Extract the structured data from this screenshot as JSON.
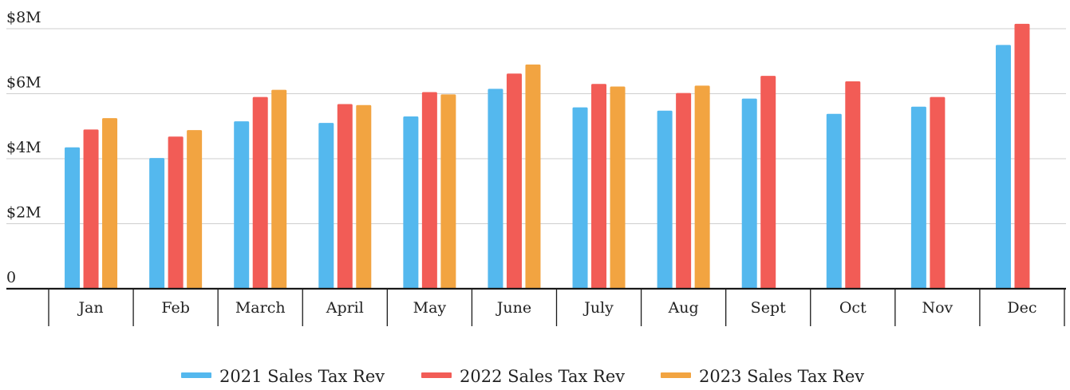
{
  "chart_data": {
    "type": "bar",
    "categories": [
      "Jan",
      "Feb",
      "March",
      "April",
      "May",
      "June",
      "July",
      "Aug",
      "Sept",
      "Oct",
      "Nov",
      "Dec"
    ],
    "series": [
      {
        "name": "2021 Sales Tax Rev",
        "color": "#54b8ee",
        "values": [
          4.35,
          4.02,
          5.15,
          5.1,
          5.3,
          6.15,
          5.58,
          5.48,
          5.85,
          5.38,
          5.6,
          7.5
        ]
      },
      {
        "name": "2022 Sales Tax Rev",
        "color": "#f25c56",
        "values": [
          4.9,
          4.68,
          5.9,
          5.68,
          6.05,
          6.62,
          6.3,
          6.02,
          6.55,
          6.38,
          5.9,
          8.15
        ]
      },
      {
        "name": "2023 Sales Tax Rev",
        "color": "#f2a441",
        "values": [
          5.25,
          4.88,
          6.12,
          5.65,
          5.98,
          6.9,
          6.22,
          6.25,
          null,
          null,
          null,
          null
        ]
      }
    ],
    "y_ticks": [
      {
        "value": 0,
        "label": "0"
      },
      {
        "value": 2,
        "label": "$2M"
      },
      {
        "value": 4,
        "label": "$4M"
      },
      {
        "value": 6,
        "label": "$6M"
      },
      {
        "value": 8,
        "label": "$8M"
      }
    ],
    "ylim": [
      0,
      8
    ],
    "title": "",
    "xlabel": "",
    "ylabel": "",
    "grid": true,
    "legend_position": "bottom-center"
  }
}
